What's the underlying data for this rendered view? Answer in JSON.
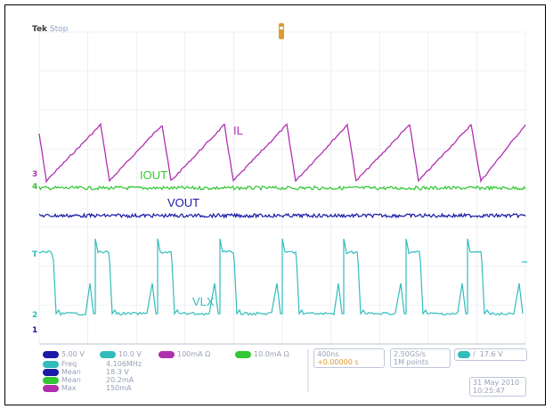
{
  "header": {
    "brand": "Tek",
    "mode": "Stop"
  },
  "colors": {
    "ch1": "#1a1aa6",
    "ch2": "#33bcbc",
    "ch3": "#b030b0",
    "ch4": "#33c833",
    "grid": "#e0e4ec",
    "trigger": "#e09a2a"
  },
  "waveforms": {
    "il_label": "IL",
    "iout_label": "IOUT",
    "vout_label": "VOUT",
    "vlx_label": "VLX"
  },
  "markers": {
    "ch3": "3",
    "ch4": "4",
    "ch1": "1",
    "ch2": "2",
    "trig_left": "T"
  },
  "readouts": {
    "ch1_scale": "5.00 V",
    "ch2_scale": "10.0 V",
    "ch3_scale": "100mA Ω",
    "ch4_scale": "10.0mA Ω",
    "timebase": "400ns",
    "trigger_pos": "+0.00000 s",
    "sample_rate": "2.50GS/s",
    "record_length": "1M points",
    "trigger_source": "2",
    "trigger_slope": "/",
    "trigger_level": "17.6 V",
    "meas": [
      {
        "ch": "2",
        "name": "Freq",
        "value": "4.106MHz"
      },
      {
        "ch": "1",
        "name": "Mean",
        "value": "18.3 V"
      },
      {
        "ch": "4",
        "name": "Mean",
        "value": "20.2mA"
      },
      {
        "ch": "3",
        "name": "Max",
        "value": "150mA"
      }
    ],
    "date": "31 May 2010",
    "time": "10:25:47"
  }
}
